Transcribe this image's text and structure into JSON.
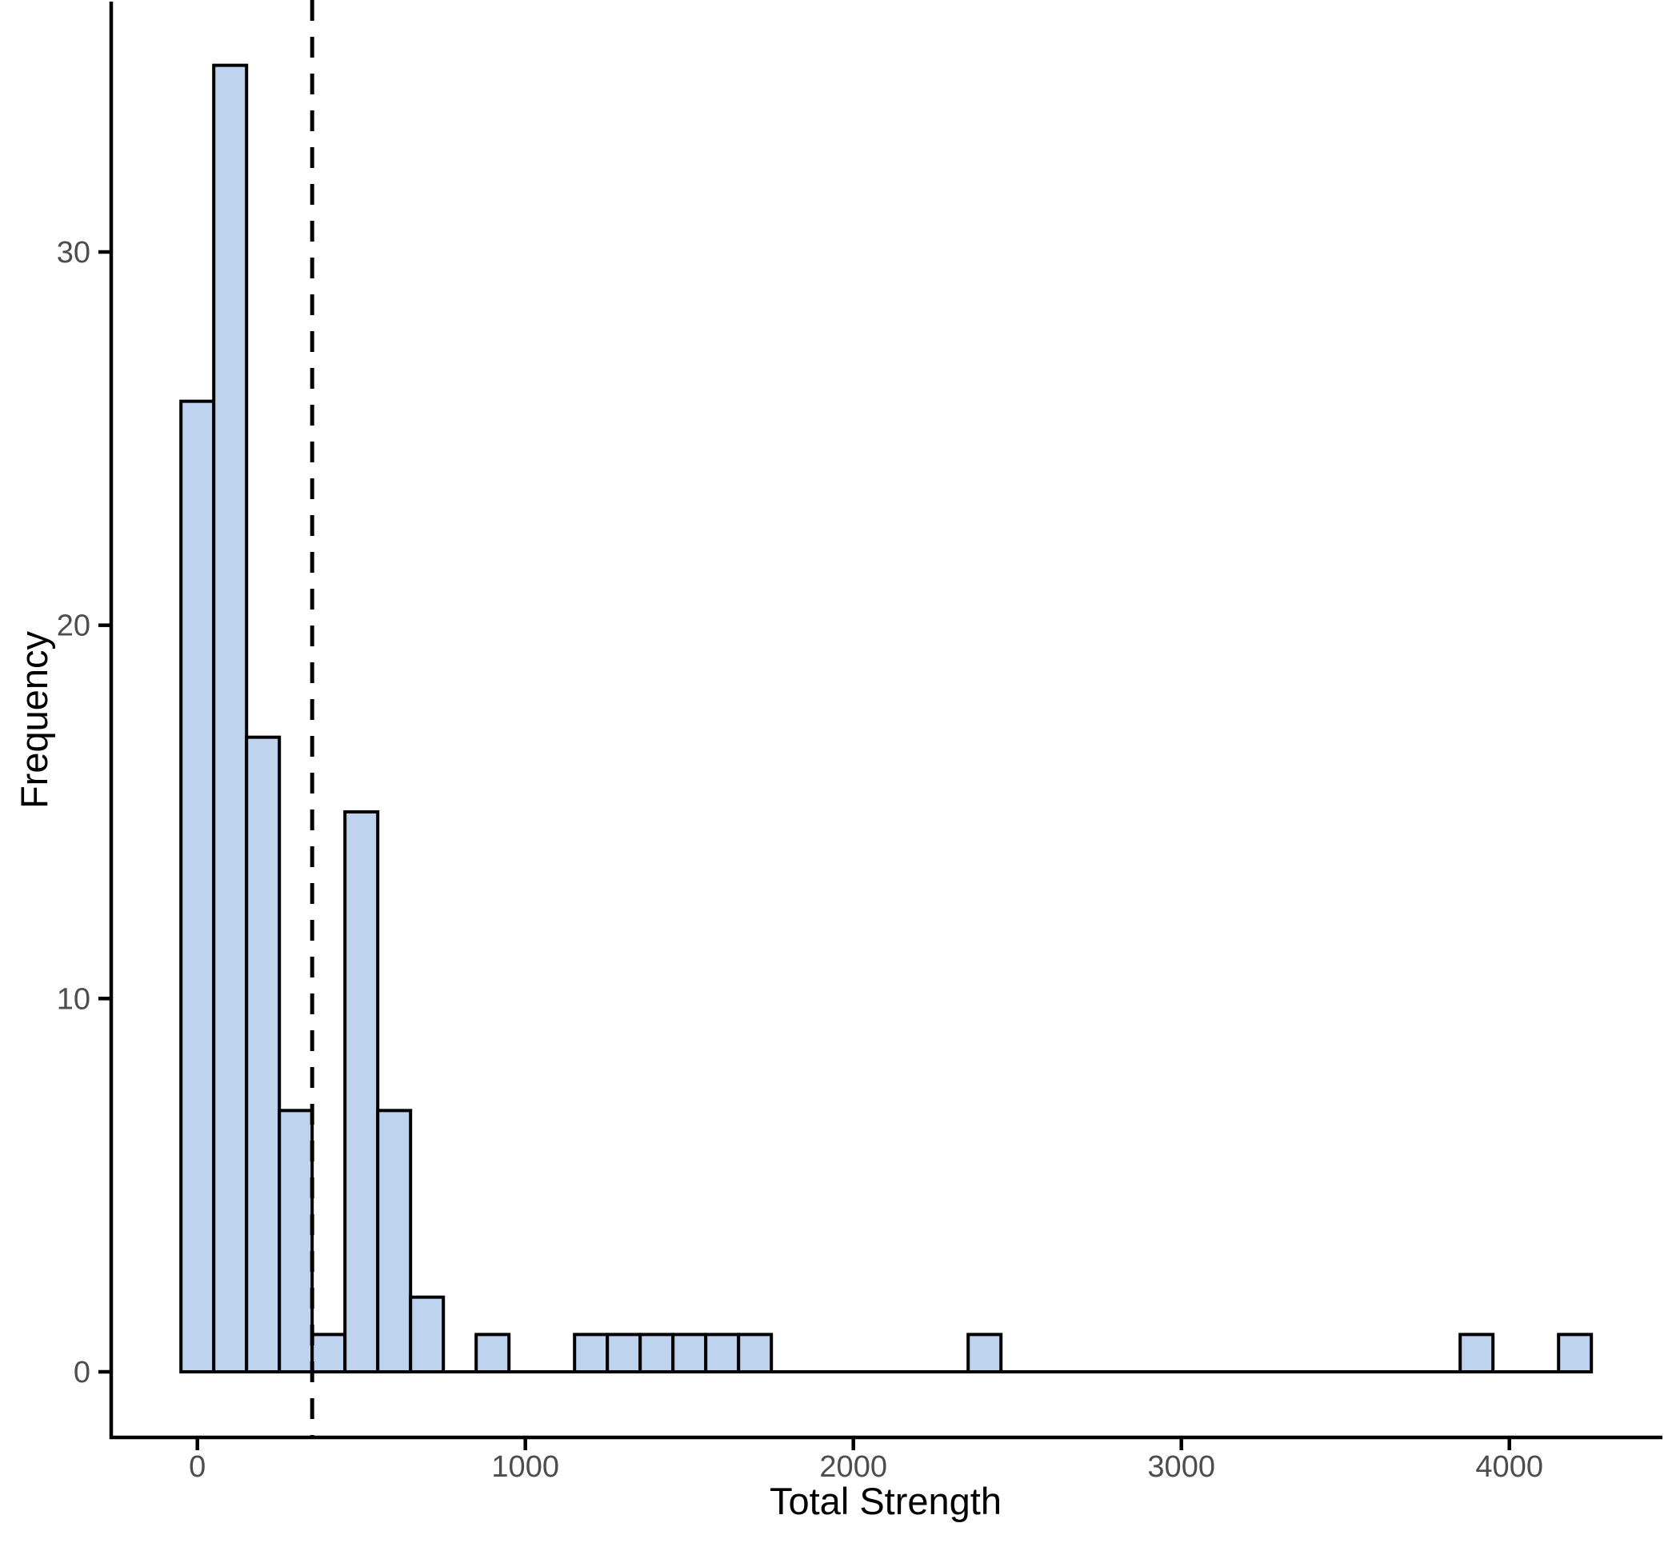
{
  "chart_data": {
    "type": "bar",
    "subtype": "histogram",
    "title": "",
    "xlabel": "Total Strength",
    "ylabel": "Frequency",
    "x_tick_labels": [
      "0",
      "1000",
      "2000",
      "3000",
      "4000"
    ],
    "x_tick_values": [
      0,
      1000,
      2000,
      3000,
      4000
    ],
    "y_tick_labels": [
      "0",
      "10",
      "20",
      "30"
    ],
    "y_tick_values": [
      0,
      10,
      20,
      30
    ],
    "xlim": [
      -265,
      4465
    ],
    "ylim": [
      0,
      36.8
    ],
    "grid": "off",
    "legend": "none",
    "bin_width": 100,
    "bin_range": [
      -50,
      4250
    ],
    "bins_nonzero": [
      {
        "x0": -50,
        "x1": 50,
        "count": 26
      },
      {
        "x0": 50,
        "x1": 150,
        "count": 35
      },
      {
        "x0": 150,
        "x1": 250,
        "count": 17
      },
      {
        "x0": 250,
        "x1": 350,
        "count": 7
      },
      {
        "x0": 350,
        "x1": 450,
        "count": 1
      },
      {
        "x0": 450,
        "x1": 550,
        "count": 15
      },
      {
        "x0": 550,
        "x1": 650,
        "count": 7
      },
      {
        "x0": 650,
        "x1": 750,
        "count": 2
      },
      {
        "x0": 850,
        "x1": 950,
        "count": 1
      },
      {
        "x0": 1150,
        "x1": 1250,
        "count": 1
      },
      {
        "x0": 1250,
        "x1": 1350,
        "count": 1
      },
      {
        "x0": 1350,
        "x1": 1450,
        "count": 1
      },
      {
        "x0": 1450,
        "x1": 1550,
        "count": 1
      },
      {
        "x0": 1550,
        "x1": 1650,
        "count": 1
      },
      {
        "x0": 1650,
        "x1": 1750,
        "count": 1
      },
      {
        "x0": 2350,
        "x1": 2450,
        "count": 1
      },
      {
        "x0": 3850,
        "x1": 3950,
        "count": 1
      },
      {
        "x0": 4150,
        "x1": 4250,
        "count": 1
      }
    ],
    "all_other_bins_count": 0,
    "dashed_vline_x": 350,
    "colors": {
      "bar_fill": "#BDD3EE",
      "bar_stroke": "#000000",
      "axis_line": "#000000",
      "tick_mark": "#000000",
      "tick_label": "#4D4D4D",
      "axis_title": "#000000",
      "dashed_line": "#000000",
      "background": "#FFFFFF"
    }
  }
}
